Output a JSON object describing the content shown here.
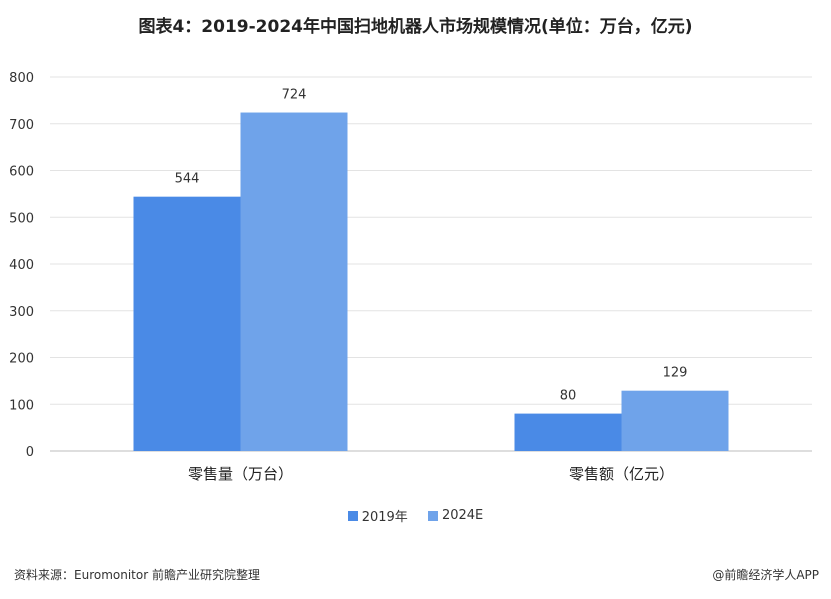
{
  "chart_data": {
    "type": "bar",
    "title": "图表4：2019-2024年中国扫地机器人市场规模情况(单位：万台，亿元)",
    "categories": [
      "零售量（万台）",
      "零售额（亿元）"
    ],
    "series": [
      {
        "name": "2019年",
        "values": [
          544,
          80
        ],
        "color": "#4a8ae6"
      },
      {
        "name": "2024E",
        "values": [
          724,
          129
        ],
        "color": "#6fa3ea"
      }
    ],
    "ylim": [
      0,
      800
    ],
    "yticks": [
      0,
      100,
      200,
      300,
      400,
      500,
      600,
      700,
      800
    ],
    "grid": true,
    "legend_position": "bottom"
  },
  "footer": {
    "source": "资料来源：Euromonitor 前瞻产业研究院整理",
    "brand": "@前瞻经济学人APP"
  }
}
